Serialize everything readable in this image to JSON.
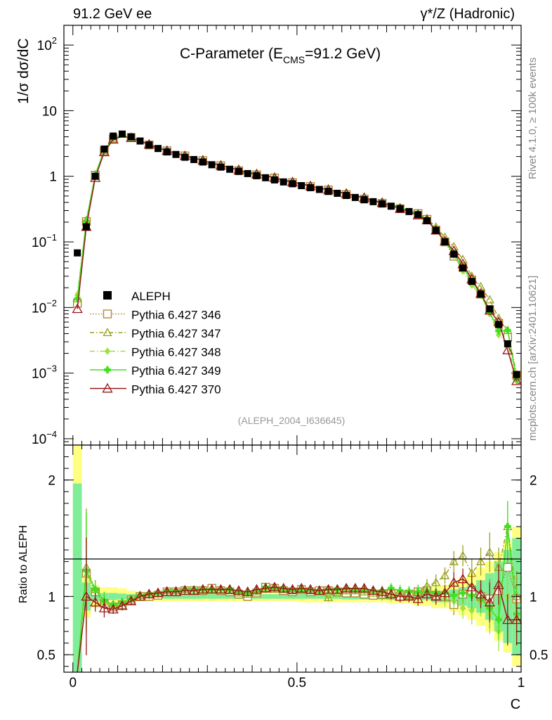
{
  "header": {
    "left": "91.2 GeV ee",
    "right": "γ*/Z (Hadronic)"
  },
  "side": {
    "top": "Rivet 4.1.0, ≥ 100k events",
    "bottom": "mcplots.cern.ch [arXiv:2401.10621]"
  },
  "chart_data": {
    "type": "line",
    "title": "C-Parameter (E_CMS=91.2 GeV)",
    "title_parts": {
      "main": "C-Parameter (E",
      "sub": "CMS",
      "tail": "=91.2 GeV)"
    },
    "analysis_id": "(ALEPH_2004_I636645)",
    "xlabel": "C",
    "ylabel_main": "1/σ  dσ/dC",
    "ylabel_ratio": "Ratio to ALEPH",
    "xlim": [
      -0.02,
      1.0
    ],
    "ylim_main": [
      8e-05,
      200
    ],
    "ylim_ratio": [
      0.35,
      2.3
    ],
    "y_scale_main": "log",
    "xticks": [
      {
        "v": 0,
        "label": "0"
      },
      {
        "v": 0.5,
        "label": "0.5"
      },
      {
        "v": 1,
        "label": "1"
      }
    ],
    "yticks_main": [
      {
        "v": 100,
        "base": "10",
        "exp": "2"
      },
      {
        "v": 10,
        "base": "10",
        "exp": ""
      },
      {
        "v": 1,
        "base": "1",
        "exp": ""
      },
      {
        "v": 0.1,
        "base": "10",
        "exp": "−1"
      },
      {
        "v": 0.01,
        "base": "10",
        "exp": "−2"
      },
      {
        "v": 0.001,
        "base": "10",
        "exp": "−3"
      },
      {
        "v": 0.0001,
        "base": "10",
        "exp": "−4"
      }
    ],
    "yticks_ratio": [
      {
        "v": 0.5,
        "label": "0.5"
      },
      {
        "v": 1,
        "label": "1"
      },
      {
        "v": 2,
        "label": "2"
      }
    ],
    "x": [
      0.01,
      0.03,
      0.05,
      0.07,
      0.09,
      0.11,
      0.13,
      0.15,
      0.17,
      0.19,
      0.21,
      0.23,
      0.25,
      0.27,
      0.29,
      0.31,
      0.33,
      0.35,
      0.37,
      0.39,
      0.41,
      0.43,
      0.45,
      0.47,
      0.49,
      0.51,
      0.53,
      0.55,
      0.57,
      0.59,
      0.61,
      0.63,
      0.65,
      0.67,
      0.69,
      0.71,
      0.73,
      0.75,
      0.77,
      0.79,
      0.81,
      0.83,
      0.85,
      0.87,
      0.89,
      0.91,
      0.93,
      0.95,
      0.97,
      0.99
    ],
    "data": {
      "name": "ALEPH",
      "color": "#000000",
      "values": [
        0.068,
        0.17,
        1.0,
        2.6,
        4.1,
        4.4,
        4.0,
        3.45,
        3.0,
        2.65,
        2.35,
        2.15,
        1.95,
        1.8,
        1.65,
        1.5,
        1.38,
        1.28,
        1.19,
        1.1,
        1.02,
        0.95,
        0.88,
        0.82,
        0.77,
        0.72,
        0.67,
        0.63,
        0.59,
        0.55,
        0.51,
        0.475,
        0.44,
        0.41,
        0.38,
        0.35,
        0.32,
        0.29,
        0.26,
        0.21,
        0.15,
        0.1,
        0.065,
        0.04,
        0.025,
        0.016,
        0.0095,
        0.0055,
        0.0028,
        0.00095
      ]
    },
    "band_edges": [
      0.0,
      0.02,
      0.04,
      0.06,
      0.08,
      0.1,
      0.12,
      0.14,
      0.16,
      0.18,
      0.2,
      0.3,
      0.4,
      0.5,
      0.6,
      0.7,
      0.76,
      0.8,
      0.84,
      0.86,
      0.88,
      0.9,
      0.92,
      0.94,
      0.96,
      0.98,
      1.0
    ],
    "band_stat": [
      0.97,
      0.12,
      0.04,
      0.03,
      0.03,
      0.025,
      0.02,
      0.02,
      0.02,
      0.02,
      0.02,
      0.02,
      0.02,
      0.02,
      0.025,
      0.03,
      0.03,
      0.05,
      0.06,
      0.08,
      0.1,
      0.14,
      0.2,
      0.3,
      0.4,
      0.5
    ],
    "band_total": [
      1.35,
      0.18,
      0.1,
      0.08,
      0.08,
      0.07,
      0.05,
      0.04,
      0.04,
      0.04,
      0.04,
      0.04,
      0.04,
      0.05,
      0.05,
      0.06,
      0.08,
      0.1,
      0.13,
      0.16,
      0.2,
      0.25,
      0.3,
      0.38,
      0.48,
      0.6
    ],
    "series": [
      {
        "name": "Pythia 6.427 346",
        "color": "#b08030",
        "marker": "square",
        "dash": "1.5,2.5",
        "ratio": [
          0.17,
          1.2,
          1.04,
          0.94,
          0.91,
          0.93,
          0.97,
          1.0,
          1.0,
          1.01,
          1.04,
          1.04,
          1.05,
          1.05,
          1.05,
          1.07,
          1.05,
          1.04,
          1.02,
          1.0,
          1.03,
          1.08,
          1.07,
          1.05,
          1.04,
          1.06,
          1.04,
          1.05,
          1.05,
          1.04,
          1.03,
          1.03,
          1.02,
          1.01,
          1.02,
          1.02,
          1.0,
          1.02,
          1.04,
          1.05,
          1.01,
          1.0,
          0.93,
          1.02,
          1.05,
          1.0,
          0.98,
          1.05,
          1.25,
          0.98
        ]
      },
      {
        "name": "Pythia 6.427 347",
        "color": "#9aa020",
        "marker": "triangle",
        "dash": "6,3,1.5,3",
        "ratio": [
          0.2,
          1.25,
          1.06,
          0.96,
          0.93,
          0.95,
          0.98,
          1.01,
          1.02,
          1.03,
          1.05,
          1.05,
          1.06,
          1.05,
          1.06,
          1.06,
          1.06,
          1.05,
          1.03,
          1.02,
          1.04,
          1.07,
          1.08,
          1.06,
          1.05,
          1.06,
          1.05,
          1.04,
          0.99,
          1.03,
          1.05,
          1.05,
          1.04,
          1.03,
          1.01,
          1.02,
          1.03,
          1.0,
          1.04,
          1.09,
          1.12,
          1.18,
          1.3,
          1.35,
          1.2,
          1.3,
          1.38,
          1.25,
          1.6,
          1.0
        ]
      },
      {
        "name": "Pythia 6.427 348",
        "color": "#a0e040",
        "marker": "diamond",
        "dash": "7,3,1.5,3",
        "ratio": [
          0.23,
          1.18,
          1.05,
          0.95,
          0.92,
          0.94,
          0.98,
          1.01,
          1.01,
          1.02,
          1.04,
          1.04,
          1.06,
          1.05,
          1.05,
          1.06,
          1.06,
          1.05,
          1.03,
          1.02,
          1.04,
          1.06,
          1.07,
          1.06,
          1.05,
          1.06,
          1.05,
          1.04,
          1.03,
          1.03,
          1.06,
          1.05,
          1.04,
          1.04,
          1.03,
          1.0,
          1.03,
          1.04,
          1.02,
          1.05,
          1.01,
          0.98,
          0.96,
          0.9,
          0.88,
          0.95,
          0.85,
          0.7,
          1.0,
          0.8
        ]
      },
      {
        "name": "Pythia 6.427 349",
        "color": "#40e020",
        "marker": "cross",
        "dash": "",
        "ratio": [
          0.2,
          1.22,
          1.06,
          0.96,
          0.93,
          0.95,
          0.98,
          1.01,
          1.02,
          1.03,
          1.05,
          1.05,
          1.06,
          1.06,
          1.06,
          1.06,
          1.06,
          1.06,
          1.04,
          1.03,
          1.05,
          1.08,
          1.07,
          1.06,
          1.05,
          1.06,
          1.05,
          1.05,
          1.06,
          1.06,
          1.07,
          1.06,
          1.06,
          1.05,
          1.05,
          1.07,
          1.05,
          1.04,
          1.04,
          1.04,
          1.03,
          1.03,
          1.01,
          1.03,
          1.01,
          0.98,
          0.9,
          0.8,
          1.6,
          0.85
        ]
      },
      {
        "name": "Pythia 6.427 370",
        "color": "#991818",
        "marker": "triangle-open",
        "dash": "",
        "ratio": [
          0.14,
          1.0,
          0.95,
          0.9,
          0.89,
          0.92,
          0.96,
          1.0,
          1.02,
          1.03,
          1.04,
          1.04,
          1.05,
          1.05,
          1.06,
          1.06,
          1.06,
          1.06,
          1.05,
          1.04,
          1.06,
          1.07,
          1.08,
          1.07,
          1.06,
          1.07,
          1.06,
          1.05,
          1.06,
          1.06,
          1.07,
          1.07,
          1.07,
          1.05,
          1.04,
          1.02,
          1.0,
          1.0,
          0.98,
          1.02,
          1.0,
          1.03,
          1.12,
          1.15,
          1.08,
          1.02,
          0.95,
          1.1,
          0.8,
          0.8
        ]
      }
    ]
  }
}
